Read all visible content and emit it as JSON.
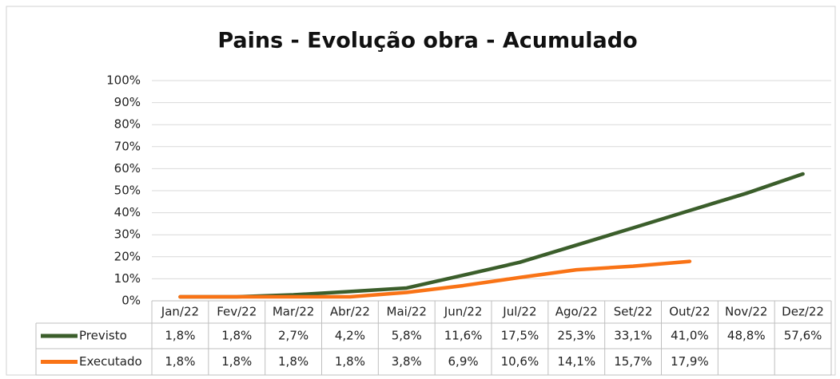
{
  "chart_data": {
    "type": "line",
    "title": "Pains - Evolução obra - Acumulado",
    "categories": [
      "Jan/22",
      "Fev/22",
      "Mar/22",
      "Abr/22",
      "Mai/22",
      "Jun/22",
      "Jul/22",
      "Ago/22",
      "Set/22",
      "Out/22",
      "Nov/22",
      "Dez/22"
    ],
    "series": [
      {
        "name": "Previsto",
        "color": "#3b5e2b",
        "values": [
          1.8,
          1.8,
          2.7,
          4.2,
          5.8,
          11.6,
          17.5,
          25.3,
          33.1,
          41.0,
          48.8,
          57.6
        ],
        "value_labels": [
          "1,8%",
          "1,8%",
          "2,7%",
          "4,2%",
          "5,8%",
          "11,6%",
          "17,5%",
          "25,3%",
          "33,1%",
          "41,0%",
          "48,8%",
          "57,6%"
        ]
      },
      {
        "name": "Executado",
        "color": "#f97316",
        "values": [
          1.8,
          1.8,
          1.8,
          1.8,
          3.8,
          6.9,
          10.6,
          14.1,
          15.7,
          17.9,
          null,
          null
        ],
        "value_labels": [
          "1,8%",
          "1,8%",
          "1,8%",
          "1,8%",
          "3,8%",
          "6,9%",
          "10,6%",
          "14,1%",
          "15,7%",
          "17,9%",
          null,
          null
        ]
      }
    ],
    "ylim": [
      0,
      100
    ],
    "yticks": [
      {
        "value": 0,
        "label": "0%"
      },
      {
        "value": 10,
        "label": "10%"
      },
      {
        "value": 20,
        "label": "20%"
      },
      {
        "value": 30,
        "label": "30%"
      },
      {
        "value": 40,
        "label": "40%"
      },
      {
        "value": 50,
        "label": "50%"
      },
      {
        "value": 60,
        "label": "60%"
      },
      {
        "value": 70,
        "label": "70%"
      },
      {
        "value": 80,
        "label": "80%"
      },
      {
        "value": 90,
        "label": "90%"
      },
      {
        "value": 100,
        "label": "100%"
      }
    ],
    "grid": true
  }
}
